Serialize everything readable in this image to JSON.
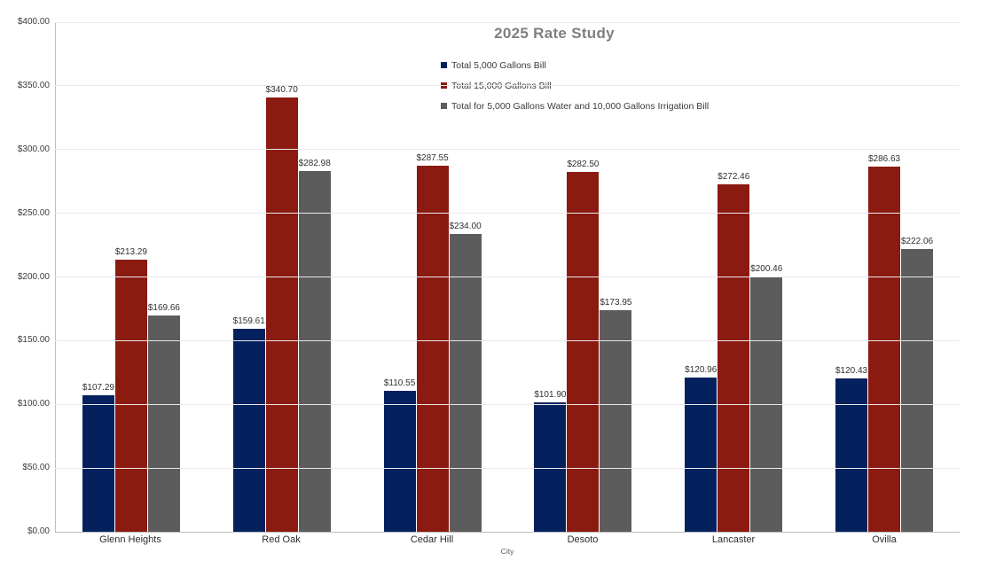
{
  "chart_data": {
    "type": "bar",
    "title": "2025 Rate Study",
    "xlabel": "City",
    "ylabel": "",
    "ylim": [
      0,
      400
    ],
    "y_tick_step": 50,
    "y_tick_labels": [
      "$0.00",
      "$50.00",
      "$100.00",
      "$150.00",
      "$200.00",
      "$250.00",
      "$300.00",
      "$350.00",
      "$400.00"
    ],
    "grid": true,
    "legend_position": "top-center",
    "data_labels": "currency, two decimals, above each bar",
    "categories": [
      "Glenn Heights",
      "Red Oak",
      "Cedar Hill",
      "Desoto",
      "Lancaster",
      "Ovilla"
    ],
    "series": [
      {
        "name": "Total 5,000 Gallons Bill",
        "color": "#04215e",
        "values": [
          107.29,
          159.61,
          110.55,
          101.9,
          120.96,
          120.43
        ]
      },
      {
        "name": "Total 15,000 Gallons Bill",
        "color": "#8b1a11",
        "values": [
          213.29,
          340.7,
          287.55,
          282.5,
          272.46,
          286.63
        ]
      },
      {
        "name": "Total for 5,000 Gallons Water and 10,000 Gallons Irrigation Bill",
        "color": "#5c5c5c",
        "values": [
          169.66,
          282.98,
          234.0,
          173.95,
          200.46,
          222.06
        ]
      }
    ],
    "colors": {
      "title": "#7f7f7f",
      "gridline": "#e9e9e9",
      "axis_line": "#bdbdbd",
      "tick_text": "#3b3b3b",
      "background": "#ffffff"
    }
  }
}
